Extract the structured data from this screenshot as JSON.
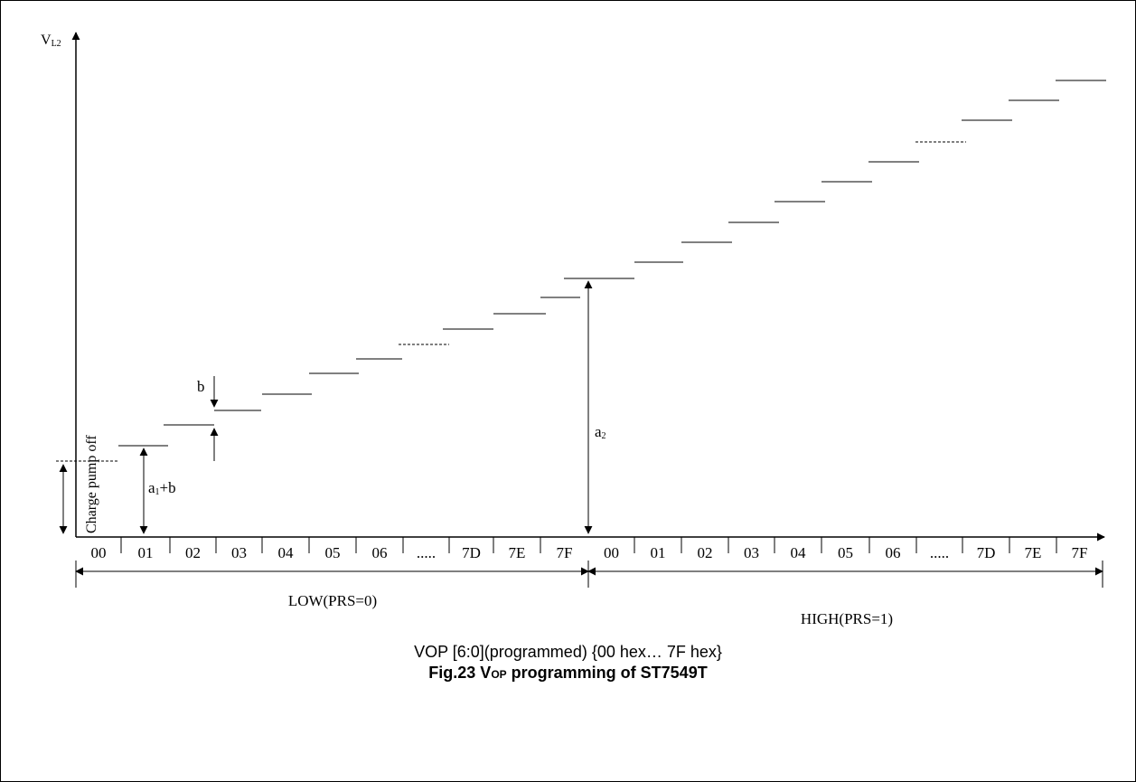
{
  "diagram": {
    "y_axis": {
      "label_main": "V",
      "label_sub": "L2"
    },
    "low_cells": [
      "00",
      "01",
      "02",
      "03",
      "04",
      "05",
      "06",
      ".....",
      "7D",
      "7E",
      "7F"
    ],
    "high_cells": [
      "00",
      "01",
      "02",
      "03",
      "04",
      "05",
      "06",
      ".....",
      "7D",
      "7E",
      "7F"
    ],
    "low_label": "LOW(PRS=0)",
    "high_label": "HIGH(PRS=1)",
    "charge_pump_label": "Charge pump off",
    "annotations": {
      "a1b_main": "a",
      "a1b_sub": "1",
      "a1b_tail": "+b",
      "b": "b",
      "a2_main": "a",
      "a2_sub": "2"
    }
  },
  "caption": {
    "line1": "VOP [6:0](programmed) {00 hex… 7F hex}",
    "line2_prefix": "Fig.23 V",
    "line2_sub": "OP",
    "line2_suffix": " programming of ST7549T"
  }
}
